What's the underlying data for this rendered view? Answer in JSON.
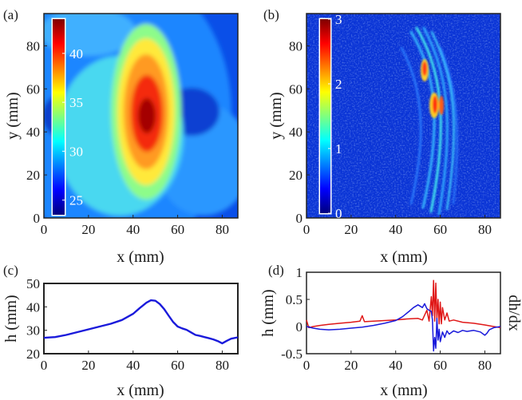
{
  "colors": {
    "jet": [
      "#00007f",
      "#0000ff",
      "#007fff",
      "#00ffff",
      "#7fff7f",
      "#ffff00",
      "#ff7f00",
      "#ff0000",
      "#7f0000"
    ],
    "line_blue": "#1a1adb",
    "line_red": "#e01818",
    "axis": "#222222"
  },
  "chart_data": [
    {
      "panel": "(a)",
      "type": "heatmap",
      "xlabel": "x (mm)",
      "ylabel": "y (mm)",
      "xlim": [
        0,
        87
      ],
      "ylim": [
        0,
        95
      ],
      "xticks": [
        "0",
        "20",
        "40",
        "60",
        "80"
      ],
      "yticks": [
        "0",
        "20",
        "40",
        "60",
        "80"
      ],
      "colorbar": {
        "range": [
          23.5,
          43.5
        ],
        "ticks": [
          "25",
          "30",
          "35",
          "40"
        ]
      },
      "description_of_field": "thickness map peaking near x=47, y=47"
    },
    {
      "panel": "(b)",
      "type": "heatmap",
      "xlabel": "x (mm)",
      "ylabel": "y (mm)",
      "xlim": [
        0,
        87
      ],
      "ylim": [
        0,
        95
      ],
      "xticks": [
        "0",
        "20",
        "40",
        "60",
        "80"
      ],
      "yticks": [
        "0",
        "20",
        "40",
        "60",
        "80"
      ],
      "colorbar": {
        "range": [
          0,
          3
        ],
        "ticks": [
          "0",
          "1",
          "2",
          "3"
        ]
      }
    },
    {
      "panel": "(c)",
      "type": "line",
      "xlabel": "x (mm)",
      "ylabel": "h (mm)",
      "xlim": [
        0,
        87
      ],
      "ylim": [
        20,
        50
      ],
      "xticks": [
        "0",
        "20",
        "40",
        "60",
        "80"
      ],
      "yticks": [
        "20",
        "30",
        "40",
        "50"
      ],
      "series": [
        {
          "name": "h",
          "x": [
            0,
            5,
            10,
            15,
            20,
            25,
            30,
            35,
            40,
            43,
            46,
            48,
            50,
            52,
            54,
            56,
            58,
            60,
            62,
            64,
            66,
            68,
            70,
            72,
            74,
            76,
            78,
            80,
            82,
            84,
            87
          ],
          "y": [
            26.8,
            27.1,
            28.0,
            29.2,
            30.4,
            31.6,
            32.8,
            34.4,
            37.0,
            39.5,
            41.8,
            42.8,
            42.6,
            41.2,
            39.0,
            36.2,
            33.5,
            31.6,
            30.8,
            30.2,
            29.1,
            28.0,
            27.6,
            27.1,
            26.6,
            26.1,
            25.4,
            24.4,
            25.5,
            26.4,
            27.0
          ]
        }
      ]
    },
    {
      "panel": "(d)",
      "type": "line",
      "xlabel": "x (mm)",
      "ylabel": "h (mm)",
      "ylabel_right": "dh/dx",
      "xlim": [
        0,
        87
      ],
      "ylim": [
        -0.5,
        1
      ],
      "xticks": [
        "0",
        "20",
        "40",
        "60",
        "80"
      ],
      "yticks": [
        "-0.5",
        "0",
        "0.5",
        "1"
      ],
      "series": [
        {
          "name": "h (mm)",
          "color": "blue",
          "x": [
            0,
            3,
            6,
            10,
            15,
            20,
            25,
            30,
            35,
            40,
            43,
            46,
            48,
            50,
            52,
            53,
            54,
            55,
            56,
            56.5,
            57,
            57.5,
            58,
            58.5,
            59,
            59.5,
            60,
            61,
            62,
            63,
            64,
            66,
            68,
            70,
            72,
            75,
            78,
            80,
            81,
            82,
            84,
            87
          ],
          "y": [
            0.0,
            -0.03,
            -0.05,
            -0.06,
            -0.05,
            -0.03,
            -0.01,
            0.02,
            0.06,
            0.11,
            0.18,
            0.28,
            0.35,
            0.4,
            0.35,
            0.42,
            0.33,
            0.3,
            0.28,
            0.12,
            -0.45,
            -0.2,
            -0.4,
            0.15,
            -0.25,
            -0.05,
            -0.28,
            -0.1,
            -0.2,
            -0.08,
            -0.14,
            -0.08,
            -0.11,
            -0.07,
            -0.09,
            -0.07,
            -0.1,
            -0.16,
            -0.12,
            -0.06,
            -0.02,
            0.0
          ]
        },
        {
          "name": "dh/dx",
          "color": "red",
          "x": [
            0,
            0.5,
            1,
            3,
            6,
            10,
            15,
            20,
            24,
            25,
            26,
            30,
            35,
            40,
            45,
            50,
            52,
            54,
            55,
            56,
            56.5,
            57,
            57.5,
            58,
            58.5,
            59,
            59.5,
            60,
            60.5,
            61,
            62,
            63,
            64,
            66,
            70,
            75,
            80,
            84,
            87
          ],
          "y": [
            0.12,
            0.05,
            -0.02,
            0.0,
            0.02,
            0.04,
            0.06,
            0.08,
            0.1,
            0.2,
            0.09,
            0.1,
            0.11,
            0.12,
            0.14,
            0.15,
            0.12,
            0.3,
            0.1,
            0.55,
            0.2,
            0.85,
            0.1,
            0.8,
            0.15,
            0.5,
            0.05,
            0.45,
            0.05,
            0.35,
            0.12,
            0.25,
            0.1,
            0.12,
            0.08,
            0.06,
            0.03,
            0.0,
            -0.02
          ]
        }
      ]
    }
  ]
}
